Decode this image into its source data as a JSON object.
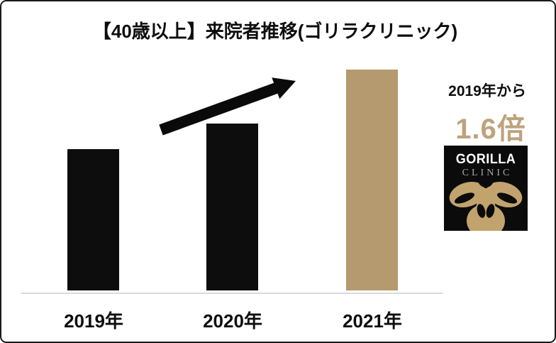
{
  "title": "【40歳以上】来院者推移(ゴリラクリニック)",
  "chart_data": {
    "type": "bar",
    "title": "【40歳以上】来院者推移(ゴリラクリニック)",
    "categories": [
      "2019年",
      "2020年",
      "2021年"
    ],
    "values": [
      1.0,
      1.18,
      1.56
    ],
    "values_note": "relative visitors, 2019 = 1.0; 2021 labeled as 1.6x of 2019",
    "bar_colors": [
      "#0d0d0d",
      "#0d0d0d",
      "#b49a6e"
    ],
    "xlabel": "",
    "ylabel": "",
    "ylim": [
      0,
      1.6
    ],
    "grid": false,
    "legend": false,
    "axis_line_color": "#d9d9d9",
    "annotations": [
      "upward black arrow from 2019 bar toward 2021 bar"
    ]
  },
  "annotation": {
    "prefix": "2019年から",
    "value": "1.6倍",
    "value_color": "#bda37c"
  },
  "logo": {
    "top": "GORILLA",
    "bottom": "CLINIC",
    "bg": "#0b0b0b",
    "gold": "#c2a36d"
  }
}
